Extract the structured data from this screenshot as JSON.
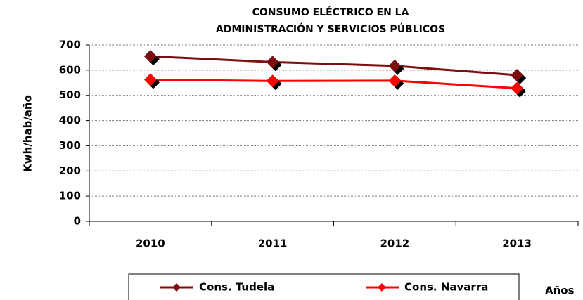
{
  "chart_data": {
    "type": "line",
    "title": [
      "CONSUMO ELÉCTRICO EN LA",
      "ADMINISTRACIÓN Y SERVICIOS PÚBLICOS"
    ],
    "y_label": "Kwh/hab/año",
    "x_label": "Años",
    "categories": [
      "2010",
      "2011",
      "2012",
      "2013"
    ],
    "series": [
      {
        "name": "Cons. Tudela",
        "color": "#7b0f0f",
        "values": [
          655,
          632,
          617,
          580
        ]
      },
      {
        "name": "Cons. Navarra",
        "color": "#ff0000",
        "values": [
          562,
          557,
          558,
          528
        ]
      }
    ],
    "ylim": [
      0,
      700
    ],
    "yticks": [
      0,
      100,
      200,
      300,
      400,
      500,
      600,
      700
    ],
    "grid": true,
    "legend": "bottom"
  }
}
